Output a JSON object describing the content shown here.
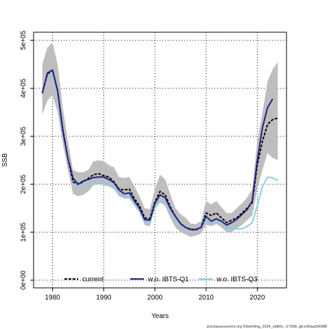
{
  "chart_data": {
    "type": "line",
    "title": "",
    "xlabel": "Years",
    "ylabel": "SSB",
    "xlim": [
      1976.3,
      2025.7
    ],
    "ylim": [
      -16000,
      517000
    ],
    "x_ticks": [
      {
        "value": 1980,
        "label": "1980"
      },
      {
        "value": 1990,
        "label": "1990"
      },
      {
        "value": 2000,
        "label": "2000"
      },
      {
        "value": 2010,
        "label": "2010"
      },
      {
        "value": 2020,
        "label": "2020"
      }
    ],
    "y_ticks": [
      {
        "value": 0,
        "label": "0e+00"
      },
      {
        "value": 100000,
        "label": "1e+05"
      },
      {
        "value": 200000,
        "label": "2e+05"
      },
      {
        "value": 300000,
        "label": "3e+05"
      },
      {
        "value": 400000,
        "label": "4e+05"
      },
      {
        "value": 500000,
        "label": "5e+05"
      }
    ],
    "grid": true,
    "legend_position": "bottom",
    "band": {
      "name": "confidence interval",
      "color": "#bebebe",
      "x": [
        1978,
        1979,
        1980,
        1981,
        1982,
        1983,
        1984,
        1985,
        1986,
        1987,
        1988,
        1989,
        1990,
        1991,
        1992,
        1993,
        1994,
        1995,
        1996,
        1997,
        1998,
        1999,
        2000,
        2001,
        2002,
        2003,
        2004,
        2005,
        2006,
        2007,
        2008,
        2009,
        2010,
        2011,
        2012,
        2013,
        2014,
        2015,
        2016,
        2017,
        2018,
        2019,
        2020,
        2021,
        2022,
        2023,
        2024
      ],
      "upper": [
        450000,
        485000,
        495000,
        450000,
        360000,
        290000,
        230000,
        225000,
        225000,
        230000,
        248000,
        250000,
        248000,
        240000,
        235000,
        215000,
        213000,
        215000,
        195000,
        175000,
        150000,
        148000,
        190000,
        220000,
        210000,
        180000,
        150000,
        138000,
        130000,
        118000,
        117000,
        123000,
        165000,
        158000,
        165000,
        152000,
        140000,
        140000,
        150000,
        160000,
        172000,
        190000,
        290000,
        350000,
        415000,
        440000,
        455000
      ],
      "lower": [
        345000,
        375000,
        385000,
        350000,
        285000,
        230000,
        180000,
        175000,
        178000,
        185000,
        198000,
        200000,
        198000,
        195000,
        190000,
        175000,
        170000,
        170000,
        155000,
        140000,
        115000,
        112000,
        148000,
        162000,
        155000,
        130000,
        110000,
        100000,
        95000,
        90000,
        93000,
        97000,
        115000,
        113000,
        117000,
        110000,
        100000,
        100000,
        108000,
        115000,
        125000,
        135000,
        190000,
        230000,
        265000,
        255000,
        250000
      ]
    },
    "series": [
      {
        "name": "current",
        "color": "#000000",
        "style": "dashed",
        "x": [
          1978,
          1979,
          1980,
          1981,
          1982,
          1983,
          1984,
          1985,
          1986,
          1987,
          1988,
          1989,
          1990,
          1991,
          1992,
          1993,
          1994,
          1995,
          1996,
          1997,
          1998,
          1999,
          2000,
          2001,
          2002,
          2003,
          2004,
          2005,
          2006,
          2007,
          2008,
          2009,
          2010,
          2011,
          2012,
          2013,
          2014,
          2015,
          2016,
          2017,
          2018,
          2019,
          2020,
          2021,
          2022,
          2023,
          2024
        ],
        "values": [
          390000,
          430000,
          438000,
          395000,
          315000,
          255000,
          205000,
          200000,
          205000,
          212000,
          220000,
          222000,
          218000,
          215000,
          205000,
          190000,
          188000,
          190000,
          170000,
          155000,
          130000,
          128000,
          163000,
          185000,
          178000,
          153000,
          133000,
          118000,
          110000,
          105000,
          105000,
          110000,
          140000,
          135000,
          140000,
          130000,
          120000,
          125000,
          130000,
          140000,
          150000,
          162000,
          240000,
          290000,
          325000,
          335000,
          338000
        ]
      },
      {
        "name": "w.o. IBTS-Q1",
        "color": "#2c1a7e",
        "style": "solid",
        "x": [
          1978,
          1979,
          1980,
          1981,
          1982,
          1983,
          1984,
          1985,
          1986,
          1987,
          1988,
          1989,
          1990,
          1991,
          1992,
          1993,
          1994,
          1995,
          1996,
          1997,
          1998,
          1999,
          2000,
          2001,
          2002,
          2003,
          2004,
          2005,
          2006,
          2007,
          2008,
          2009,
          2010,
          2011,
          2012,
          2013,
          2014,
          2015,
          2016,
          2017,
          2018,
          2019,
          2020,
          2021,
          2022,
          2023
        ],
        "values": [
          390000,
          432000,
          438000,
          395000,
          312000,
          255000,
          213000,
          200000,
          207000,
          210000,
          214000,
          215000,
          215000,
          210000,
          203000,
          188000,
          180000,
          182000,
          165000,
          150000,
          126000,
          125000,
          160000,
          178000,
          172000,
          150000,
          133000,
          118000,
          110000,
          106000,
          106000,
          110000,
          133000,
          123000,
          128000,
          123000,
          115000,
          120000,
          127000,
          137000,
          147000,
          165000,
          250000,
          318000,
          360000,
          378000
        ]
      },
      {
        "name": "w.o. IBTS-Q3",
        "color": "#87ceeb",
        "style": "solid",
        "x": [
          1978,
          1979,
          1980,
          1981,
          1982,
          1983,
          1984,
          1985,
          1986,
          1987,
          1988,
          1989,
          1990,
          1991,
          1992,
          1993,
          1994,
          1995,
          1996,
          1997,
          1998,
          1999,
          2000,
          2001,
          2002,
          2003,
          2004,
          2005,
          2006,
          2007,
          2008,
          2009,
          2010,
          2011,
          2012,
          2013,
          2014,
          2015,
          2016,
          2017,
          2018,
          2019,
          2020,
          2021,
          2022,
          2023,
          2024
        ],
        "values": [
          388000,
          425000,
          430000,
          385000,
          305000,
          250000,
          210000,
          195000,
          198000,
          200000,
          205000,
          205000,
          205000,
          200000,
          195000,
          182000,
          175000,
          177000,
          160000,
          145000,
          122000,
          120000,
          152000,
          170000,
          162000,
          141000,
          125000,
          115000,
          107000,
          105000,
          105000,
          108000,
          127000,
          120000,
          123000,
          117000,
          110000,
          108000,
          107000,
          107000,
          112000,
          120000,
          155000,
          195000,
          215000,
          213000,
          208000
        ]
      }
    ],
    "footer": "stockassessment.org NSwhiting_2024_oldMo, r17958, git:e36aa2b4988"
  }
}
